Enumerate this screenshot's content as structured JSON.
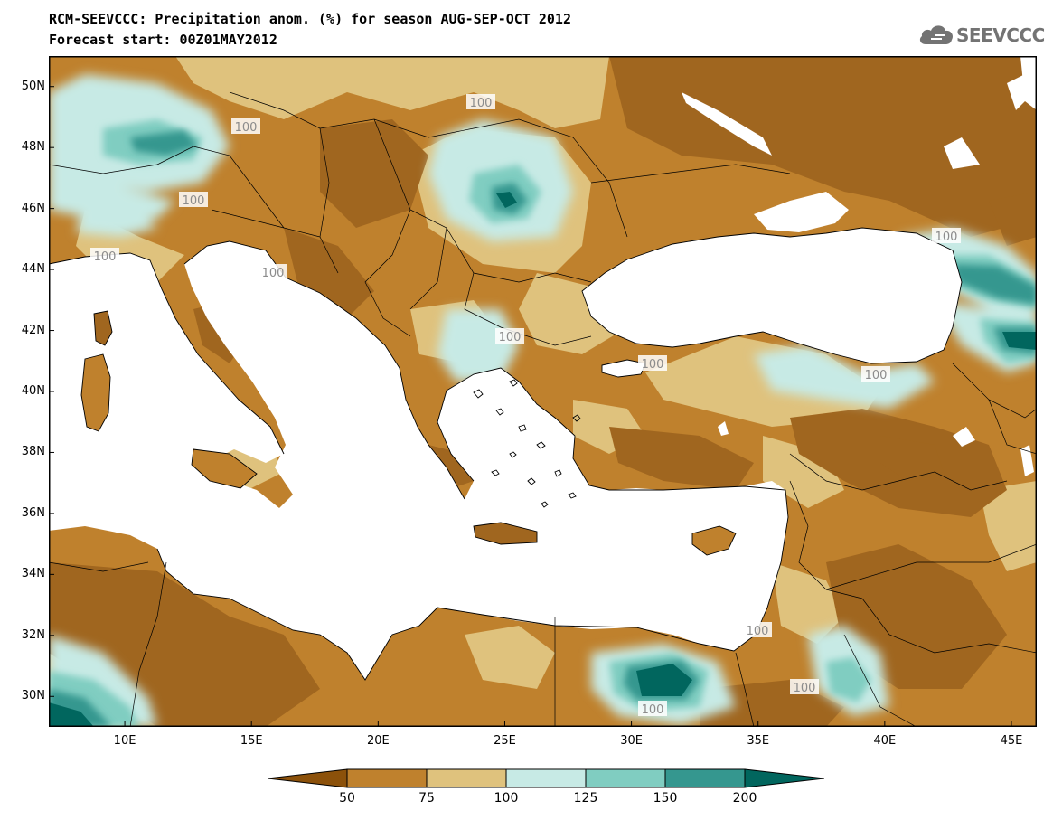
{
  "header": {
    "title_line1": "RCM-SEEVCCC: Precipitation anom. (%) for season AUG-SEP-OCT 2012",
    "title_line2": "Forecast start: 00Z01MAY2012"
  },
  "logo": {
    "text": "SEEVCCC",
    "icon": "cloud-icon"
  },
  "map": {
    "lat_labels": [
      "50N",
      "48N",
      "46N",
      "44N",
      "42N",
      "40N",
      "38N",
      "36N",
      "34N",
      "32N",
      "30N"
    ],
    "lon_labels": [
      "10E",
      "15E",
      "20E",
      "25E",
      "30E",
      "35E",
      "40E",
      "45E"
    ],
    "lat_range": [
      29,
      51
    ],
    "lon_range": [
      7,
      46
    ],
    "contour_labels": [
      "100",
      "100",
      "100",
      "100",
      "100",
      "100",
      "100",
      "100",
      "100",
      "100",
      "100",
      "100"
    ]
  },
  "legend": {
    "labels": [
      "50",
      "75",
      "100",
      "125",
      "150",
      "200"
    ],
    "colors": [
      "#8c510a",
      "#bf812d",
      "#dfc27d",
      "#c7eae5",
      "#80cdc1",
      "#35978f",
      "#01665e"
    ]
  },
  "palette": {
    "dry_strong": "#a0661f",
    "dry": "#bf812d",
    "near_normal": "#dfc27d",
    "wet": "#c7eae5",
    "wetter": "#80cdc1",
    "wettest": "#35978f",
    "extreme": "#01665e",
    "sea": "#ffffff"
  }
}
